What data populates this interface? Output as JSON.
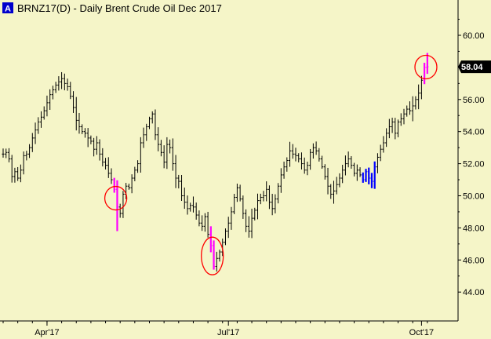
{
  "header": {
    "badge": "A",
    "title": "BRNZ17(D) - Daily  Brent Crude Oil Dec 2017"
  },
  "price_tag": "58.04",
  "colors": {
    "background": "#f5f5c8",
    "bar": "#000000",
    "highlight_magenta": "#ff00ff",
    "highlight_blue": "#0000ff",
    "circle": "#ff0000",
    "badge": "#0000cc",
    "price_tag_bg": "#000000"
  },
  "chart_data": {
    "type": "ohlc",
    "title": "BRNZ17(D) - Daily  Brent Crude Oil Dec 2017",
    "ylim": [
      42.2,
      62.2
    ],
    "yticks": [
      44.0,
      46.0,
      48.0,
      50.0,
      52.0,
      54.0,
      56.0,
      58.0,
      60.0
    ],
    "ytick_labels": [
      "44.00",
      "46.00",
      "48.00",
      "50.00",
      "52.00",
      "54.00",
      "56.00",
      "58.00",
      "60.00"
    ],
    "xtick_labels": [
      {
        "label": "Apr'17",
        "bar": 15
      },
      {
        "label": "Jul'17",
        "bar": 77
      },
      {
        "label": "Oct'17",
        "bar": 143
      }
    ],
    "grid": false,
    "last_price": 58.04,
    "closes": [
      52.6,
      52.7,
      52.3,
      51.2,
      51.5,
      51.1,
      51.6,
      52.5,
      52.6,
      53.0,
      53.6,
      54.1,
      54.6,
      54.9,
      55.3,
      55.8,
      56.3,
      56.6,
      56.9,
      57.1,
      57.3,
      57.0,
      56.8,
      56.2,
      55.5,
      54.7,
      54.3,
      54.0,
      53.9,
      53.6,
      53.4,
      52.9,
      53.3,
      52.6,
      52.1,
      51.9,
      51.4,
      51.0,
      50.4,
      49.3,
      48.9,
      50.1,
      50.6,
      50.5,
      51.1,
      51.6,
      52.0,
      53.3,
      53.8,
      54.3,
      54.8,
      55.1,
      53.8,
      53.2,
      52.7,
      52.1,
      53.2,
      53.0,
      52.0,
      51.1,
      50.9,
      50.0,
      49.6,
      49.2,
      49.4,
      49.3,
      48.8,
      48.3,
      48.1,
      48.7,
      47.6,
      46.9,
      45.6,
      46.1,
      46.5,
      47.1,
      47.8,
      48.3,
      49.0,
      49.9,
      50.5,
      49.8,
      48.9,
      48.1,
      47.8,
      48.6,
      49.1,
      49.7,
      49.9,
      50.0,
      50.4,
      49.6,
      49.2,
      49.8,
      50.6,
      51.3,
      51.8,
      52.2,
      52.8,
      52.6,
      52.5,
      52.3,
      52.0,
      51.6,
      51.9,
      52.7,
      53.0,
      52.8,
      52.3,
      51.8,
      51.2,
      50.6,
      50.1,
      50.3,
      50.7,
      51.1,
      51.6,
      52.0,
      52.3,
      51.9,
      51.4,
      51.6,
      51.3,
      51.0,
      51.5,
      51.1,
      50.9,
      51.8,
      52.4,
      52.9,
      53.3,
      53.9,
      54.3,
      54.6,
      53.9,
      54.6,
      54.8,
      55.1,
      55.4,
      55.3,
      55.6,
      56.0,
      56.4,
      57.2,
      58.0,
      58.04
    ],
    "highlights": [
      {
        "bars": [
          38,
          39
        ],
        "color": "magenta",
        "circled": true
      },
      {
        "bars": [
          71,
          72
        ],
        "color": "magenta",
        "circled": true
      },
      {
        "bars": [
          123,
          124,
          125,
          126,
          127
        ],
        "color": "blue",
        "circled": false
      },
      {
        "bars": [
          144,
          145
        ],
        "color": "magenta",
        "circled": true
      }
    ]
  }
}
